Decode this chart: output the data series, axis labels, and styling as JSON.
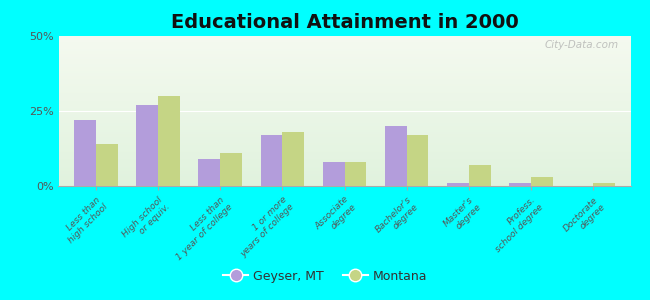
{
  "title": "Educational Attainment in 2000",
  "categories": [
    "Less than\nhigh school",
    "High school\nor equiv.",
    "Less than\n1 year of college",
    "1 or more\nyears of college",
    "Associate\ndegree",
    "Bachelor's\ndegree",
    "Master's\ndegree",
    "Profess.\nschool degree",
    "Doctorate\ndegree"
  ],
  "geyser_values": [
    22,
    27,
    9,
    17,
    8,
    20,
    1,
    1,
    0
  ],
  "montana_values": [
    14,
    30,
    11,
    18,
    8,
    17,
    7,
    3,
    1
  ],
  "geyser_color": "#b39ddb",
  "montana_color": "#c5d585",
  "background_color": "#00ffff",
  "ylim": [
    0,
    50
  ],
  "yticks": [
    0,
    25,
    50
  ],
  "ytick_labels": [
    "0%",
    "25%",
    "50%"
  ],
  "legend_geyser": "Geyser, MT",
  "legend_montana": "Montana",
  "bar_width": 0.35,
  "title_fontsize": 14,
  "watermark": "City-Data.com"
}
